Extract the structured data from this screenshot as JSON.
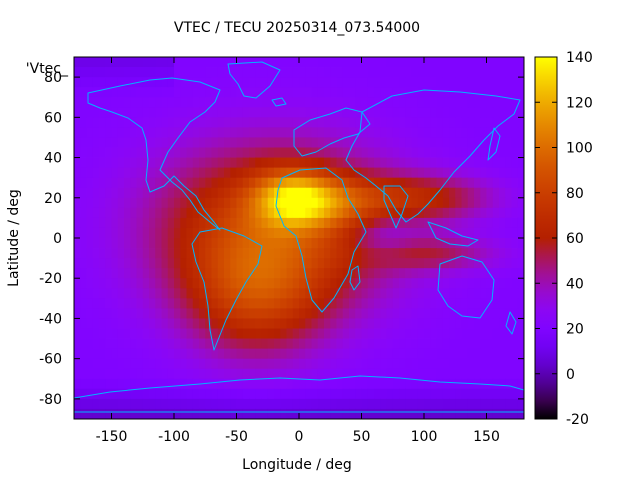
{
  "chart_data": {
    "type": "heatmap",
    "title": "VTEC / TECU 20250314_073.54000",
    "xlabel": "Longitude / deg",
    "ylabel": "Latitude / deg",
    "legend_key": "'Vtec_",
    "xlim": [
      -180,
      180
    ],
    "ylim": [
      -90,
      90
    ],
    "xticks": [
      -150,
      -100,
      -50,
      0,
      50,
      100,
      150
    ],
    "yticks": [
      -80,
      -60,
      -40,
      -20,
      0,
      20,
      40,
      60,
      80
    ],
    "xtick_labels": [
      "-150",
      "-100",
      "-50",
      "0",
      "50",
      "100",
      "150"
    ],
    "ytick_labels": [
      "-80",
      "-60",
      "-40",
      "-20",
      "0",
      "20",
      "40",
      "60",
      "80"
    ],
    "colorbar": {
      "range": [
        -20,
        140
      ],
      "ticks": [
        -20,
        0,
        20,
        40,
        60,
        80,
        100,
        120,
        140
      ],
      "tick_labels": [
        "-20",
        "0",
        "20",
        "40",
        "60",
        "80",
        "100",
        "120",
        "140"
      ],
      "colormap": "gnuplot-pm3d-rgbformulae-7-5-15"
    },
    "grid": false,
    "background_tec": 20,
    "features": [
      {
        "name": "main-equatorial-peak",
        "lon": -5,
        "lat": 20,
        "tec": 135
      },
      {
        "name": "equatorial-anomaly-north",
        "lon": 20,
        "lat": 18,
        "tec": 115
      },
      {
        "name": "atlantic-crest",
        "lon": -40,
        "lat": 10,
        "tec": 100
      },
      {
        "name": "south-atlantic-crest",
        "lon": -20,
        "lat": -35,
        "tec": 90
      },
      {
        "name": "indian-ocean-tail",
        "lon": 100,
        "lat": -5,
        "tec": 75
      },
      {
        "name": "asia-tail",
        "lon": 110,
        "lat": 25,
        "tec": 75
      }
    ],
    "overlays": [
      "coastlines"
    ]
  }
}
